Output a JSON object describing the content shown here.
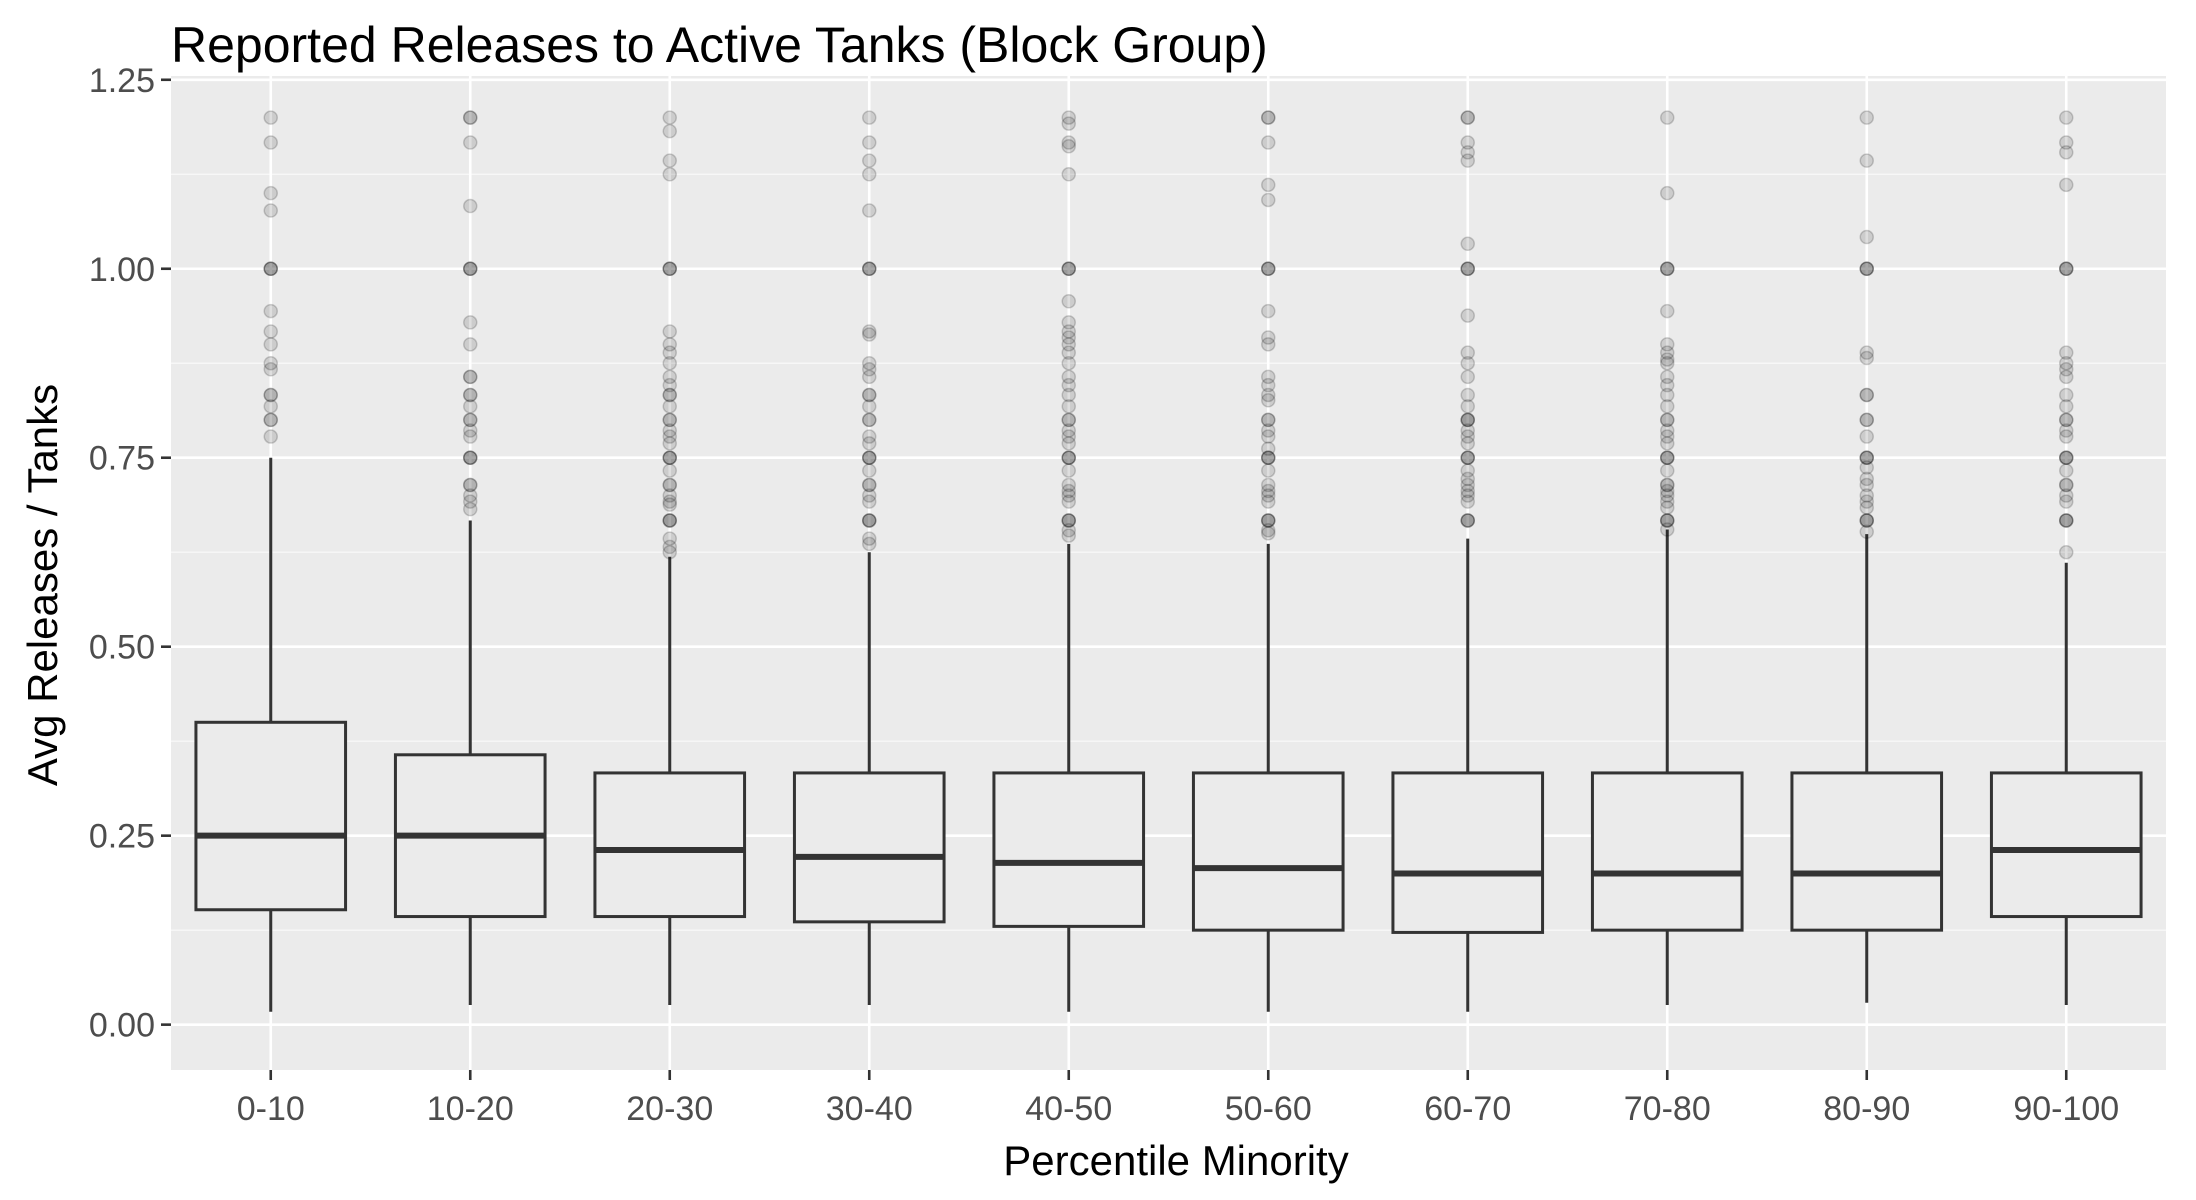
{
  "chart_data": {
    "type": "boxplot",
    "title": "Reported Releases to Active Tanks (Block Group)",
    "xlabel": "Percentile Minority",
    "ylabel": "Avg Releases / Tanks",
    "ylim": [
      -0.06,
      1.255
    ],
    "yticks": [
      0.0,
      0.25,
      0.5,
      0.75,
      1.0,
      1.25
    ],
    "ytick_labels": [
      "0.00",
      "0.25",
      "0.50",
      "0.75",
      "1.00",
      "1.25"
    ],
    "grid": true,
    "legend": "none",
    "colors": {
      "panel_bg": "#ebebeb",
      "grid_major": "#ffffff",
      "grid_minor": "#f7f7f7",
      "box_line": "#333333",
      "box_fill": "#ebebeb",
      "outlier": "#000000",
      "tick": "#333333"
    },
    "categories": [
      "0-10",
      "10-20",
      "20-30",
      "30-40",
      "40-50",
      "50-60",
      "60-70",
      "70-80",
      "80-90",
      "90-100"
    ],
    "boxes": [
      {
        "category": "0-10",
        "whisker_low": 0.017,
        "q1": 0.152,
        "median": 0.25,
        "q3": 0.4,
        "whisker_high": 0.75,
        "outliers": [
          1.2,
          1.167,
          1.1,
          1.077,
          1.0,
          1.0,
          1.0,
          0.944,
          0.917,
          0.9,
          0.875,
          0.867,
          0.833,
          0.833,
          0.818,
          0.8,
          0.8,
          0.778
        ]
      },
      {
        "category": "10-20",
        "whisker_low": 0.026,
        "q1": 0.143,
        "median": 0.25,
        "q3": 0.357,
        "whisker_high": 0.667,
        "outliers": [
          1.2,
          1.2,
          1.167,
          1.083,
          1.0,
          1.0,
          1.0,
          0.929,
          0.9,
          0.857,
          0.857,
          0.833,
          0.833,
          0.818,
          0.8,
          0.8,
          0.786,
          0.778,
          0.75,
          0.75,
          0.75,
          0.714,
          0.714,
          0.7,
          0.692,
          0.682
        ]
      },
      {
        "category": "20-30",
        "whisker_low": 0.026,
        "q1": 0.143,
        "median": 0.231,
        "q3": 0.333,
        "whisker_high": 0.619,
        "outliers": [
          1.2,
          1.182,
          1.143,
          1.125,
          1.0,
          1.0,
          1.0,
          0.917,
          0.9,
          0.889,
          0.875,
          0.857,
          0.846,
          0.833,
          0.833,
          0.818,
          0.8,
          0.8,
          0.786,
          0.778,
          0.769,
          0.75,
          0.75,
          0.75,
          0.733,
          0.714,
          0.714,
          0.7,
          0.692,
          0.688,
          0.667,
          0.667,
          0.667,
          0.643,
          0.632,
          0.625
        ]
      },
      {
        "category": "30-40",
        "whisker_low": 0.026,
        "q1": 0.136,
        "median": 0.222,
        "q3": 0.333,
        "whisker_high": 0.625,
        "outliers": [
          1.2,
          1.167,
          1.143,
          1.125,
          1.077,
          1.0,
          1.0,
          1.0,
          0.917,
          0.913,
          0.875,
          0.867,
          0.857,
          0.833,
          0.833,
          0.818,
          0.8,
          0.8,
          0.778,
          0.769,
          0.75,
          0.75,
          0.75,
          0.733,
          0.714,
          0.714,
          0.7,
          0.692,
          0.667,
          0.667,
          0.667,
          0.643,
          0.636
        ]
      },
      {
        "category": "40-50",
        "whisker_low": 0.017,
        "q1": 0.13,
        "median": 0.214,
        "q3": 0.333,
        "whisker_high": 0.636,
        "outliers": [
          1.2,
          1.192,
          1.167,
          1.162,
          1.125,
          1.0,
          1.0,
          1.0,
          0.957,
          0.929,
          0.917,
          0.909,
          0.9,
          0.889,
          0.875,
          0.857,
          0.846,
          0.833,
          0.818,
          0.8,
          0.8,
          0.786,
          0.778,
          0.769,
          0.75,
          0.75,
          0.75,
          0.733,
          0.714,
          0.706,
          0.7,
          0.692,
          0.667,
          0.667,
          0.667,
          0.654,
          0.647
        ]
      },
      {
        "category": "50-60",
        "whisker_low": 0.017,
        "q1": 0.125,
        "median": 0.207,
        "q3": 0.333,
        "whisker_high": 0.636,
        "outliers": [
          1.2,
          1.2,
          1.167,
          1.111,
          1.091,
          1.0,
          1.0,
          1.0,
          0.944,
          0.909,
          0.9,
          0.857,
          0.846,
          0.833,
          0.826,
          0.8,
          0.8,
          0.786,
          0.778,
          0.762,
          0.75,
          0.75,
          0.75,
          0.733,
          0.714,
          0.706,
          0.7,
          0.692,
          0.667,
          0.667,
          0.667,
          0.654,
          0.65
        ]
      },
      {
        "category": "60-70",
        "whisker_low": 0.017,
        "q1": 0.122,
        "median": 0.2,
        "q3": 0.333,
        "whisker_high": 0.643,
        "outliers": [
          1.2,
          1.2,
          1.167,
          1.154,
          1.143,
          1.033,
          1.0,
          1.0,
          1.0,
          0.938,
          0.889,
          0.875,
          0.857,
          0.833,
          0.818,
          0.8,
          0.8,
          0.8,
          0.786,
          0.778,
          0.769,
          0.75,
          0.75,
          0.75,
          0.733,
          0.722,
          0.714,
          0.706,
          0.7,
          0.692,
          0.667,
          0.667,
          0.667
        ]
      },
      {
        "category": "70-80",
        "whisker_low": 0.026,
        "q1": 0.125,
        "median": 0.2,
        "q3": 0.333,
        "whisker_high": 0.655,
        "outliers": [
          1.2,
          1.1,
          1.0,
          1.0,
          1.0,
          0.944,
          0.9,
          0.889,
          0.88,
          0.875,
          0.857,
          0.846,
          0.833,
          0.818,
          0.8,
          0.8,
          0.786,
          0.778,
          0.769,
          0.75,
          0.75,
          0.75,
          0.733,
          0.714,
          0.714,
          0.706,
          0.7,
          0.692,
          0.684,
          0.667,
          0.667,
          0.667,
          0.655
        ]
      },
      {
        "category": "80-90",
        "whisker_low": 0.029,
        "q1": 0.125,
        "median": 0.2,
        "q3": 0.333,
        "whisker_high": 0.649,
        "outliers": [
          1.2,
          1.143,
          1.042,
          1.0,
          1.0,
          1.0,
          0.889,
          0.882,
          0.833,
          0.833,
          0.8,
          0.8,
          0.778,
          0.75,
          0.75,
          0.75,
          0.737,
          0.722,
          0.714,
          0.7,
          0.692,
          0.684,
          0.667,
          0.667,
          0.667,
          0.652
        ]
      },
      {
        "category": "90-100",
        "whisker_low": 0.026,
        "q1": 0.143,
        "median": 0.231,
        "q3": 0.333,
        "whisker_high": 0.611,
        "outliers": [
          1.2,
          1.167,
          1.154,
          1.111,
          1.0,
          1.0,
          1.0,
          0.889,
          0.875,
          0.867,
          0.857,
          0.833,
          0.818,
          0.8,
          0.8,
          0.786,
          0.778,
          0.75,
          0.75,
          0.75,
          0.733,
          0.714,
          0.714,
          0.7,
          0.692,
          0.667,
          0.667,
          0.667,
          0.625
        ]
      }
    ]
  }
}
